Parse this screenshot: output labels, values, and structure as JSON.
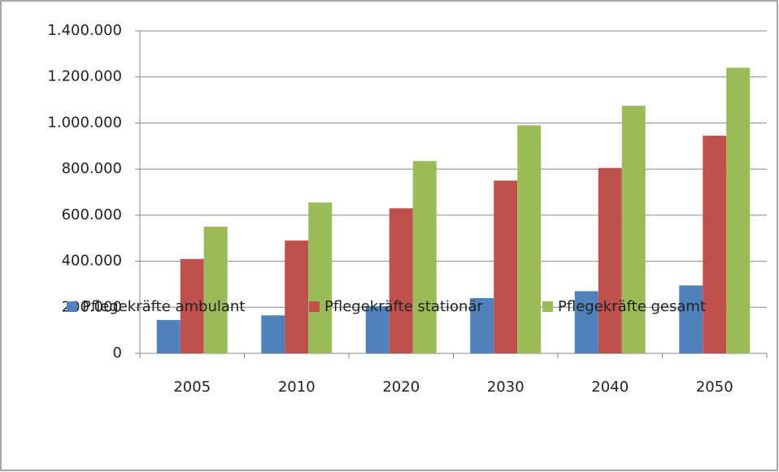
{
  "chart_data": {
    "type": "bar",
    "categories": [
      "2005",
      "2010",
      "2020",
      "2030",
      "2040",
      "2050"
    ],
    "series": [
      {
        "name": "Pflegekräfte ambulant",
        "color": "#4f81bd",
        "values": [
          145000,
          165000,
          205000,
          240000,
          270000,
          295000
        ]
      },
      {
        "name": "Pflegekräfte stationär",
        "color": "#c0504d",
        "values": [
          410000,
          490000,
          630000,
          750000,
          805000,
          945000
        ]
      },
      {
        "name": "Pflegekräfte gesamt",
        "color": "#9bbb59",
        "values": [
          550000,
          655000,
          835000,
          990000,
          1075000,
          1240000
        ]
      }
    ],
    "ylim": [
      0,
      1400000
    ],
    "yticks": [
      0,
      {
        "value": 200000,
        "label": "200.000"
      },
      {
        "value": 400000,
        "label": "400.000"
      },
      {
        "value": 600000,
        "label": "600.000"
      },
      {
        "value": 800000,
        "label": "800.000"
      },
      {
        "value": 1000000,
        "label": "1.000.000"
      },
      {
        "value": 1200000,
        "label": "1.200.000"
      },
      {
        "value": 1400000,
        "label": "1.400.000"
      }
    ],
    "grid": true,
    "legend": "bottom"
  }
}
